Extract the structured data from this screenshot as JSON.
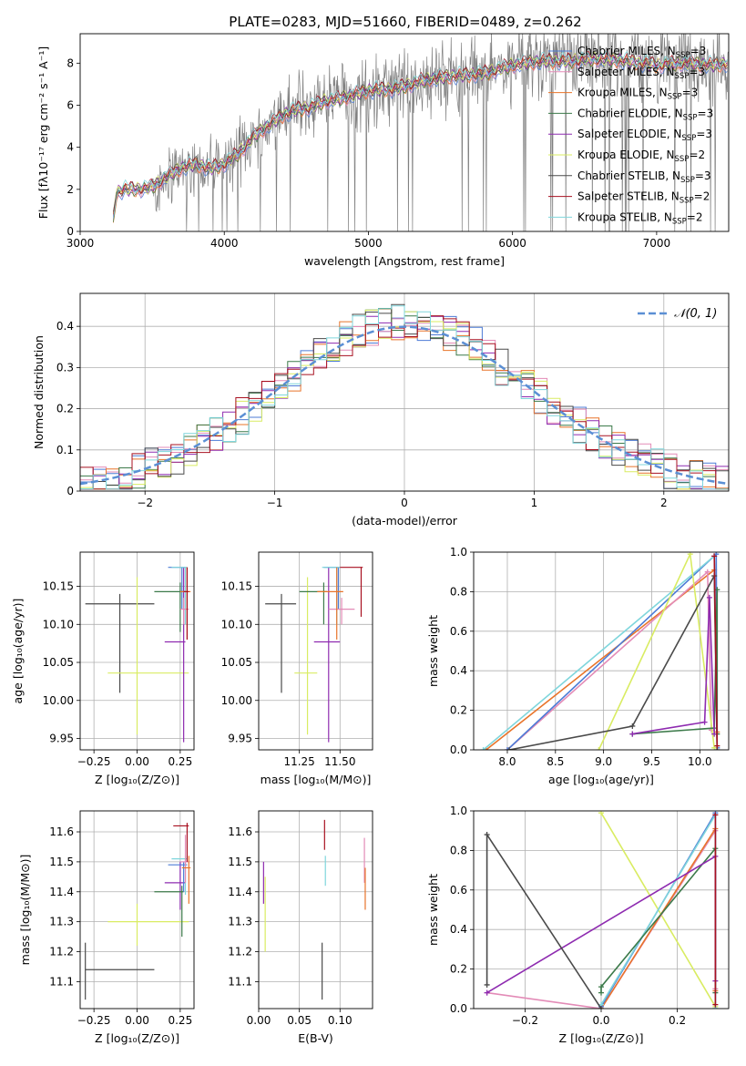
{
  "figure_title": "PLATE=0283, MJD=51660, FIBERID=0489, z=0.262",
  "palette": {
    "Chabrier MILES": "#4c7bd6",
    "Salpeter MILES": "#e38bb7",
    "Kroupa MILES": "#e8742a",
    "Chabrier ELODIE": "#3c7a4a",
    "Salpeter ELODIE": "#8e2bb0",
    "Kroupa ELODIE": "#d9ec62",
    "Chabrier STELIB": "#4a4a4a",
    "Salpeter STELIB": "#a81020",
    "Kroupa STELIB": "#7fd6dc",
    "data": "#808080",
    "gaussian": "#5b8fd4"
  },
  "chart_data": [
    {
      "id": "spectrum",
      "type": "line",
      "xlabel": "wavelength [Angstrom, rest frame]",
      "ylabel": "Flux [fλ10⁻¹⁷ erg cm⁻² s⁻¹ A⁻¹]",
      "xlim": [
        3000,
        7500
      ],
      "ylim": [
        0,
        9.4
      ],
      "xticks": [
        3000,
        4000,
        5000,
        6000,
        7000
      ],
      "yticks": [
        0,
        2,
        4,
        6,
        8
      ],
      "legend_position": "top-right",
      "data_trend": {
        "wavelength": [
          3220,
          3250,
          3300,
          3400,
          3500,
          3600,
          3700,
          3800,
          3900,
          4000,
          4100,
          4200,
          4300,
          4400,
          4500,
          4600,
          4700,
          4800,
          4900,
          5000,
          5200,
          5400,
          5600,
          5800,
          6000,
          6200,
          6400,
          6600,
          6800,
          7000,
          7200,
          7400,
          7500
        ],
        "flux": [
          0.0,
          1.8,
          2.0,
          2.0,
          2.1,
          2.6,
          3.0,
          3.2,
          3.0,
          3.2,
          3.7,
          4.5,
          5.0,
          5.5,
          5.8,
          5.9,
          6.2,
          6.3,
          6.5,
          6.7,
          6.8,
          7.2,
          7.4,
          7.5,
          7.9,
          8.1,
          8.1,
          8.2,
          8.1,
          7.9,
          8.0,
          7.9,
          8.0
        ]
      },
      "series": [
        {
          "name": "Chabrier MILES, N_SSP=3"
        },
        {
          "name": "Salpeter MILES, N_SSP=3"
        },
        {
          "name": "Kroupa MILES, N_SSP=3"
        },
        {
          "name": "Chabrier ELODIE, N_SSP=3"
        },
        {
          "name": "Salpeter ELODIE, N_SSP=3"
        },
        {
          "name": "Kroupa ELODIE, N_SSP=2"
        },
        {
          "name": "Chabrier STELIB, N_SSP=3"
        },
        {
          "name": "Salpeter STELIB, N_SSP=2"
        },
        {
          "name": "Kroupa STELIB, N_SSP=2"
        }
      ]
    },
    {
      "id": "residuals",
      "type": "line",
      "xlabel": "(data-model)/error",
      "ylabel": "Normed distribution",
      "xlim": [
        -2.5,
        2.5
      ],
      "ylim": [
        0,
        0.48
      ],
      "xticks": [
        -2,
        -1,
        0,
        1,
        2
      ],
      "yticks": [
        0.0,
        0.1,
        0.2,
        0.3,
        0.4
      ],
      "legend": "𝒩(0, 1)",
      "legend_position": "top-right",
      "grid": true
    },
    {
      "id": "age_vs_Z",
      "type": "scatter",
      "xlabel": "Z [log₁₀(Z/Z⊙)]",
      "ylabel": "age  [log₁₀(age/yr)]",
      "xlim": [
        -0.33,
        0.33
      ],
      "ylim": [
        9.935,
        10.195
      ],
      "xticks": [
        -0.25,
        0.0,
        0.25
      ],
      "xticklabels": [
        "−0.25",
        "0.00",
        "0.25"
      ],
      "yticks": [
        9.95,
        10.0,
        10.05,
        10.1,
        10.15
      ],
      "yticklabels": [
        "9.95",
        "10.00",
        "10.05",
        "10.10",
        "10.15"
      ],
      "grid": true,
      "points": [
        {
          "s": "Chabrier STELIB",
          "x": -0.1,
          "xlo": -0.3,
          "xhi": 0.1,
          "y": 10.127,
          "ylo": 10.01,
          "yhi": 10.14
        },
        {
          "s": "Kroupa ELODIE",
          "x": 0.0,
          "xlo": -0.17,
          "xhi": 0.3,
          "y": 10.036,
          "ylo": 9.955,
          "yhi": 10.162
        },
        {
          "s": "Salpeter ELODIE",
          "x": 0.27,
          "xlo": 0.16,
          "xhi": 0.28,
          "y": 10.077,
          "ylo": 9.945,
          "yhi": 10.175
        },
        {
          "s": "Chabrier MILES",
          "x": 0.26,
          "xlo": 0.18,
          "xhi": 0.28,
          "y": 10.175,
          "ylo": 10.12,
          "yhi": 10.175
        },
        {
          "s": "Kroupa STELIB",
          "x": 0.28,
          "xlo": 0.2,
          "xhi": 0.29,
          "y": 10.175,
          "ylo": 10.1,
          "yhi": 10.175
        },
        {
          "s": "Chabrier ELODIE",
          "x": 0.25,
          "xlo": 0.1,
          "xhi": 0.28,
          "y": 10.143,
          "ylo": 10.09,
          "yhi": 10.155
        },
        {
          "s": "Salpeter MILES",
          "x": 0.27,
          "xlo": 0.25,
          "xhi": 0.3,
          "y": 10.12,
          "ylo": 10.1,
          "yhi": 10.135
        },
        {
          "s": "Kroupa MILES",
          "x": 0.29,
          "xlo": 0.25,
          "xhi": 0.31,
          "y": 10.143,
          "ylo": 10.08,
          "yhi": 10.175
        },
        {
          "s": "Salpeter STELIB",
          "x": 0.29,
          "xlo": 0.27,
          "xhi": 0.3,
          "y": 10.143,
          "ylo": 10.08,
          "yhi": 10.175
        }
      ]
    },
    {
      "id": "age_vs_mass",
      "type": "scatter",
      "xlabel": "mass [log₁₀(M/M⊙)]",
      "xlim": [
        11.0,
        11.7
      ],
      "ylim": [
        9.935,
        10.195
      ],
      "xticks": [
        11.25,
        11.5
      ],
      "xticklabels": [
        "11.25",
        "11.50"
      ],
      "yticks": [
        9.95,
        10.0,
        10.05,
        10.1,
        10.15
      ],
      "yticklabels": [
        "9.95",
        "10.00",
        "10.05",
        "10.10",
        "10.15"
      ],
      "grid": true,
      "points": [
        {
          "s": "Chabrier STELIB",
          "x": 11.14,
          "xlo": 11.04,
          "xhi": 11.23,
          "y": 10.127,
          "ylo": 10.01,
          "yhi": 10.14
        },
        {
          "s": "Kroupa ELODIE",
          "x": 11.3,
          "xlo": 11.22,
          "xhi": 11.36,
          "y": 10.036,
          "ylo": 9.955,
          "yhi": 10.162
        },
        {
          "s": "Salpeter ELODIE",
          "x": 11.43,
          "xlo": 11.34,
          "xhi": 11.5,
          "y": 10.077,
          "ylo": 9.945,
          "yhi": 10.175
        },
        {
          "s": "Chabrier ELODIE",
          "x": 11.4,
          "xlo": 11.25,
          "xhi": 11.42,
          "y": 10.143,
          "ylo": 10.1,
          "yhi": 10.155
        },
        {
          "s": "Chabrier MILES",
          "x": 11.49,
          "xlo": 11.4,
          "xhi": 11.5,
          "y": 10.175,
          "ylo": 10.12,
          "yhi": 10.175
        },
        {
          "s": "Kroupa STELIB",
          "x": 11.48,
          "xlo": 11.39,
          "xhi": 11.5,
          "y": 10.175,
          "ylo": 10.1,
          "yhi": 10.175
        },
        {
          "s": "Salpeter MILES",
          "x": 11.51,
          "xlo": 11.43,
          "xhi": 11.59,
          "y": 10.12,
          "ylo": 10.1,
          "yhi": 10.135
        },
        {
          "s": "Kroupa MILES",
          "x": 11.48,
          "xlo": 11.36,
          "xhi": 11.52,
          "y": 10.143,
          "ylo": 10.08,
          "yhi": 10.175
        },
        {
          "s": "Salpeter STELIB",
          "x": 11.63,
          "xlo": 11.5,
          "xhi": 11.64,
          "y": 10.175,
          "ylo": 10.11,
          "yhi": 10.175
        }
      ]
    },
    {
      "id": "weight_vs_age",
      "type": "line",
      "xlabel": "age  [log₁₀(age/yr)]",
      "ylabel": "mass weight",
      "xlim": [
        7.65,
        10.3
      ],
      "ylim": [
        0,
        1.0
      ],
      "xticks": [
        8.0,
        8.5,
        9.0,
        9.5,
        10.0
      ],
      "xticklabels": [
        "8.0",
        "8.5",
        "9.0",
        "9.5",
        "10.0"
      ],
      "yticks": [
        0.0,
        0.2,
        0.4,
        0.6,
        0.8,
        1.0
      ],
      "yticklabels": [
        "0.0",
        "0.2",
        "0.4",
        "0.6",
        "0.8",
        "1.0"
      ],
      "grid": true,
      "series": [
        {
          "s": "Kroupa MILES",
          "x": [
            7.78,
            10.15,
            10.18
          ],
          "y": [
            0.0,
            0.91,
            0.09
          ]
        },
        {
          "s": "Salpeter MILES",
          "x": [
            8.0,
            10.08,
            10.12
          ],
          "y": [
            0.0,
            0.9,
            0.1
          ]
        },
        {
          "s": "Chabrier MILES",
          "x": [
            8.0,
            10.17,
            10.18
          ],
          "y": [
            0.0,
            0.99,
            0.01
          ]
        },
        {
          "s": "Kroupa STELIB",
          "x": [
            7.75,
            10.15,
            10.18
          ],
          "y": [
            0.0,
            0.98,
            0.02
          ]
        },
        {
          "s": "Kroupa ELODIE",
          "x": [
            8.95,
            9.9,
            10.15
          ],
          "y": [
            0.0,
            0.99,
            0.01
          ]
        },
        {
          "s": "Chabrier ELODIE",
          "x": [
            9.3,
            10.15,
            10.18,
            10.18
          ],
          "y": [
            0.08,
            0.11,
            0.81,
            0.08
          ]
        },
        {
          "s": "Salpeter ELODIE",
          "x": [
            9.3,
            10.05,
            10.1,
            10.15
          ],
          "y": [
            0.08,
            0.14,
            0.77,
            0.08
          ]
        },
        {
          "s": "Chabrier STELIB",
          "x": [
            8.02,
            9.3,
            10.15,
            10.18
          ],
          "y": [
            0.0,
            0.12,
            0.88,
            0.0
          ]
        },
        {
          "s": "Salpeter STELIB",
          "x": [
            10.15,
            10.18
          ],
          "y": [
            0.98,
            0.02
          ]
        }
      ]
    },
    {
      "id": "mass_vs_Z",
      "type": "scatter",
      "xlabel": "Z [log₁₀(Z/Z⊙)]",
      "ylabel": "mass [log₁₀(M/M⊙)]",
      "xlim": [
        -0.33,
        0.33
      ],
      "ylim": [
        11.01,
        11.67
      ],
      "xticks": [
        -0.25,
        0.0,
        0.25
      ],
      "xticklabels": [
        "−0.25",
        "0.00",
        "0.25"
      ],
      "yticks": [
        11.1,
        11.2,
        11.3,
        11.4,
        11.5,
        11.6
      ],
      "yticklabels": [
        "11.1",
        "11.2",
        "11.3",
        "11.4",
        "11.5",
        "11.6"
      ],
      "grid": true,
      "points": [
        {
          "s": "Chabrier STELIB",
          "x": -0.3,
          "xlo": -0.3,
          "xhi": 0.1,
          "y": 11.14,
          "ylo": 11.04,
          "yhi": 11.23
        },
        {
          "s": "Kroupa ELODIE",
          "x": 0.0,
          "xlo": -0.17,
          "xhi": 0.3,
          "y": 11.3,
          "ylo": 11.22,
          "yhi": 11.36
        },
        {
          "s": "Salpeter ELODIE",
          "x": 0.25,
          "xlo": 0.16,
          "xhi": 0.28,
          "y": 11.43,
          "ylo": 11.34,
          "yhi": 11.5
        },
        {
          "s": "Chabrier ELODIE",
          "x": 0.26,
          "xlo": 0.1,
          "xhi": 0.27,
          "y": 11.4,
          "ylo": 11.25,
          "yhi": 11.42
        },
        {
          "s": "Chabrier MILES",
          "x": 0.27,
          "xlo": 0.18,
          "xhi": 0.29,
          "y": 11.49,
          "ylo": 11.4,
          "yhi": 11.5
        },
        {
          "s": "Kroupa STELIB",
          "x": 0.28,
          "xlo": 0.2,
          "xhi": 0.29,
          "y": 11.51,
          "ylo": 11.39,
          "yhi": 11.52
        },
        {
          "s": "Salpeter MILES",
          "x": 0.28,
          "xlo": 0.25,
          "xhi": 0.3,
          "y": 11.5,
          "ylo": 11.43,
          "yhi": 11.59
        },
        {
          "s": "Kroupa MILES",
          "x": 0.3,
          "xlo": 0.26,
          "xhi": 0.31,
          "y": 11.48,
          "ylo": 11.36,
          "yhi": 11.52
        },
        {
          "s": "Salpeter STELIB",
          "x": 0.29,
          "xlo": 0.21,
          "xhi": 0.3,
          "y": 11.62,
          "ylo": 11.5,
          "yhi": 11.63
        }
      ]
    },
    {
      "id": "mass_vs_ebv",
      "type": "scatter",
      "xlabel": "E(B-V)",
      "xlim": [
        0.0,
        0.14
      ],
      "ylim": [
        11.01,
        11.67
      ],
      "xticks": [
        0.0,
        0.05,
        0.1
      ],
      "xticklabels": [
        "0.00",
        "0.05",
        "0.10"
      ],
      "yticks": [
        11.1,
        11.2,
        11.3,
        11.4,
        11.5,
        11.6
      ],
      "yticklabels": [
        "11.1",
        "11.2",
        "11.3",
        "11.4",
        "11.5",
        "11.6"
      ],
      "grid": true,
      "points": [
        {
          "s": "Salpeter ELODIE",
          "x": 0.006,
          "y": 11.44,
          "ylo": 11.36,
          "yhi": 11.5
        },
        {
          "s": "Kroupa ELODIE",
          "x": 0.008,
          "y": 11.3,
          "ylo": 11.2,
          "yhi": 11.45
        },
        {
          "s": "Chabrier STELIB",
          "x": 0.078,
          "y": 11.14,
          "ylo": 11.04,
          "yhi": 11.23
        },
        {
          "s": "Salpeter STELIB",
          "x": 0.081,
          "y": 11.59,
          "ylo": 11.54,
          "yhi": 11.64
        },
        {
          "s": "Kroupa STELIB",
          "x": 0.082,
          "y": 11.49,
          "ylo": 11.42,
          "yhi": 11.52
        },
        {
          "s": "Salpeter MILES",
          "x": 0.13,
          "y": 11.5,
          "ylo": 11.43,
          "yhi": 11.58
        },
        {
          "s": "Kroupa MILES",
          "x": 0.131,
          "y": 11.42,
          "ylo": 11.34,
          "yhi": 11.48
        }
      ]
    },
    {
      "id": "weight_vs_Z",
      "type": "line",
      "xlabel": "Z [log₁₀(Z/Z⊙)]",
      "ylabel": "mass weight",
      "xlim": [
        -0.335,
        0.335
      ],
      "ylim": [
        0,
        1.0
      ],
      "xticks": [
        -0.2,
        0.0,
        0.2
      ],
      "xticklabels": [
        "−0.2",
        "0.0",
        "0.2"
      ],
      "yticks": [
        0.0,
        0.2,
        0.4,
        0.6,
        0.8,
        1.0
      ],
      "yticklabels": [
        "0.0",
        "0.2",
        "0.4",
        "0.6",
        "0.8",
        "1.0"
      ],
      "grid": true,
      "series": [
        {
          "s": "Kroupa ELODIE",
          "x": [
            0.0,
            0.3,
            0.3
          ],
          "y": [
            0.99,
            0.01,
            0.0
          ]
        },
        {
          "s": "Salpeter MILES",
          "x": [
            -0.3,
            0.0,
            0.3,
            0.3
          ],
          "y": [
            0.08,
            0.0,
            0.9,
            0.1
          ]
        },
        {
          "s": "Kroupa MILES",
          "x": [
            0.0,
            0.3,
            0.3
          ],
          "y": [
            0.0,
            0.91,
            0.09
          ]
        },
        {
          "s": "Chabrier MILES",
          "x": [
            0.0,
            0.3,
            0.3
          ],
          "y": [
            0.01,
            0.99,
            0.0
          ]
        },
        {
          "s": "Kroupa STELIB",
          "x": [
            0.0,
            0.3,
            0.3
          ],
          "y": [
            0.02,
            0.98,
            0.0
          ]
        },
        {
          "s": "Chabrier ELODIE",
          "x": [
            0.0,
            0.0,
            0.3,
            0.3
          ],
          "y": [
            0.08,
            0.11,
            0.81,
            0.08
          ]
        },
        {
          "s": "Salpeter ELODIE",
          "x": [
            -0.3,
            0.3,
            0.3
          ],
          "y": [
            0.08,
            0.77,
            0.14
          ]
        },
        {
          "s": "Chabrier STELIB",
          "x": [
            -0.3,
            -0.3,
            0.0
          ],
          "y": [
            0.12,
            0.88,
            0.0
          ]
        },
        {
          "s": "Salpeter STELIB",
          "x": [
            0.3,
            0.3
          ],
          "y": [
            0.98,
            0.02
          ]
        }
      ]
    }
  ]
}
